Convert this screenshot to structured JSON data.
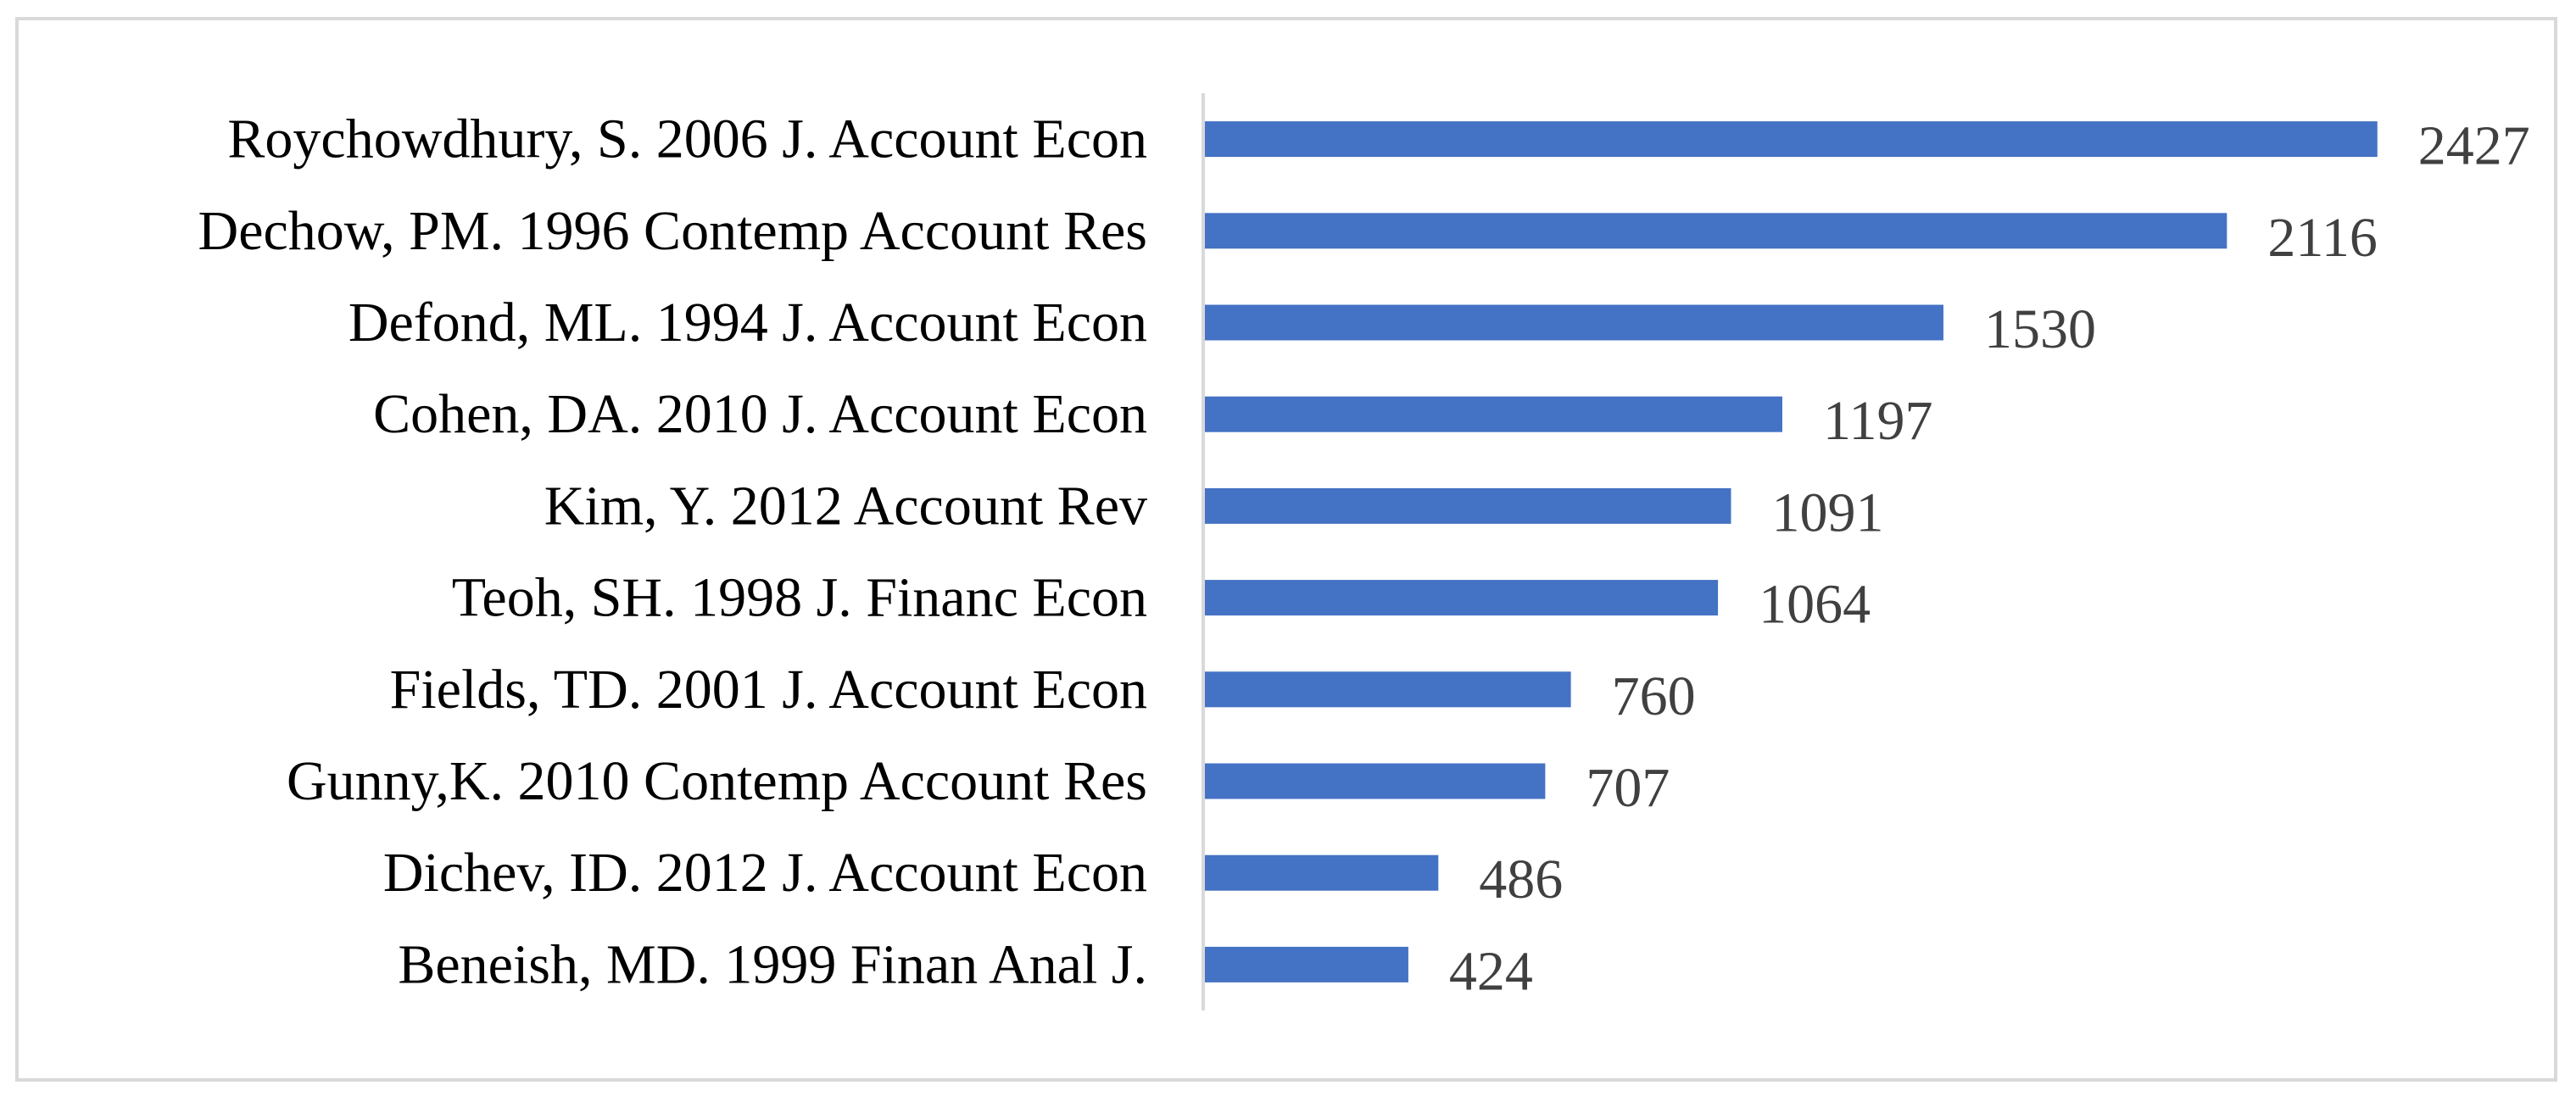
{
  "chart_data": {
    "type": "bar",
    "orientation": "horizontal",
    "categories": [
      "Roychowdhury, S. 2006  J. Account Econ",
      "Dechow, PM. 1996 Contemp Account Res",
      "Defond, ML. 1994 J. Account Econ",
      "Cohen, DA. 2010 J. Account Econ",
      "Kim, Y. 2012 Account Rev",
      "Teoh, SH. 1998  J. Financ Econ",
      "Fields, TD. 2001 J. Account Econ",
      "Gunny,K. 2010 Contemp Account Res",
      "Dichev, ID. 2012 J. Account Econ",
      "Beneish, MD. 1999 Finan Anal J."
    ],
    "values": [
      2427,
      2116,
      1530,
      1197,
      1091,
      1064,
      760,
      707,
      486,
      424
    ],
    "value_labels": [
      "2427",
      "2116",
      "1530",
      "1197",
      "1091",
      "1064",
      "760",
      "707",
      "486",
      "424"
    ],
    "title": "",
    "xlabel": "",
    "ylabel": "",
    "xlim": [
      0,
      2650
    ],
    "grid": false,
    "legend": "none",
    "data_labels": true,
    "bar_color": "#4472c4",
    "axis_color": "#d9d9d9",
    "frame_color": "#d9d9d9"
  }
}
